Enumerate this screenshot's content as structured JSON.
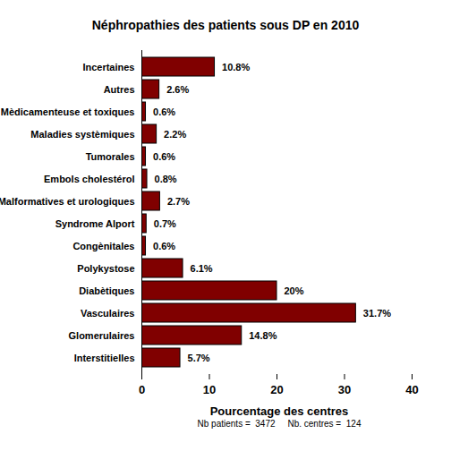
{
  "chart_data": {
    "type": "bar",
    "title": "Néphropathies des patients sous DP en 2010",
    "orientation": "horizontal",
    "categories": [
      "Incertaines",
      "Autres",
      "Mèdicamenteuse et toxiques",
      "Maladies systèmiques",
      "Tumorales",
      "Embols cholestérol",
      "Malformatives et urologiques",
      "Syndrome Alport",
      "Congènitales",
      "Polykystose",
      "Diabètiques",
      "Vasculaires",
      "Glomerulaires",
      "Interstitielles"
    ],
    "values": [
      10.8,
      2.6,
      0.6,
      2.2,
      0.6,
      0.8,
      2.7,
      0.7,
      0.6,
      6.1,
      20,
      31.7,
      14.8,
      5.7
    ],
    "value_labels": [
      "10.8%",
      "2.6%",
      "0.6%",
      "2.2%",
      "0.6%",
      "0.8%",
      "2.7%",
      "0.7%",
      "0.6%",
      "6.1%",
      "20%",
      "31.7%",
      "14.8%",
      "5.7%"
    ],
    "data_labels": true,
    "color": "#800000",
    "x_label": "Pourcentage des centres",
    "caption": "Nb patients =  3472     Nb. centres =  124",
    "xlim": [
      0,
      40
    ],
    "xticks": [
      0,
      10,
      20,
      30,
      40
    ],
    "grid": false
  }
}
